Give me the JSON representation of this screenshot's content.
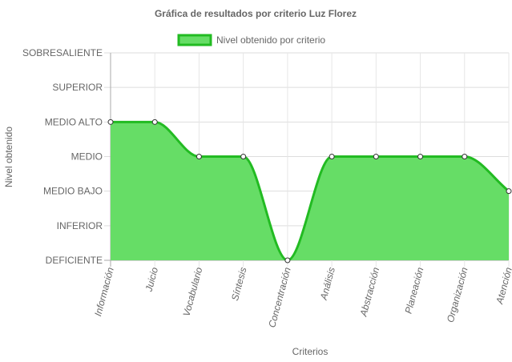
{
  "chart_data": {
    "type": "area",
    "title": "Gráfica de resultados por criterio Luz Florez",
    "xlabel": "Criterios",
    "ylabel": "Nivel obtenido",
    "categories": [
      "Información",
      "Juicio",
      "Vocabulario",
      "Síntesis",
      "Concentración",
      "Análisis",
      "Abstracción",
      "Planeación",
      "Organización",
      "Atención"
    ],
    "y_levels": [
      "DEFICIENTE",
      "INFERIOR",
      "MEDIO BAJO",
      "MEDIO",
      "MEDIO ALTO",
      "SUPERIOR",
      "SOBRESALIENTE"
    ],
    "ylim": [
      0,
      6
    ],
    "series": [
      {
        "name": "Nivel obtenido por criterio",
        "values": [
          4,
          4,
          3,
          3,
          0,
          3,
          3,
          3,
          3,
          2
        ],
        "fill_color": "#66dd66",
        "line_color": "#22bb22"
      }
    ],
    "grid": true,
    "legend": "top-center"
  }
}
